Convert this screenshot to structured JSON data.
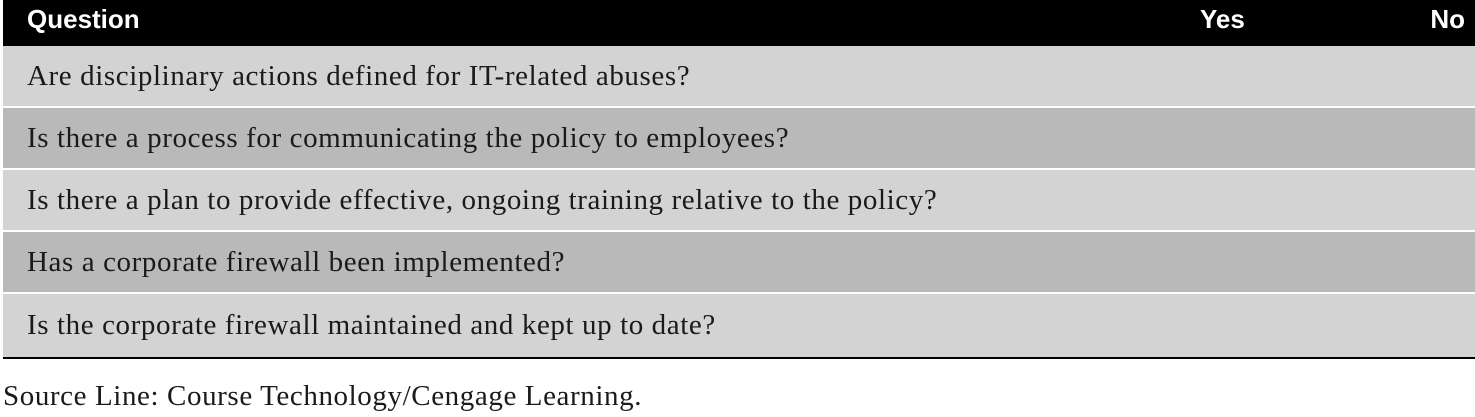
{
  "header": {
    "question": "Question",
    "yes": "Yes",
    "no": "No"
  },
  "rows": [
    "Are disciplinary actions defined for IT-related abuses?",
    "Is there a process for communicating the policy to employees?",
    "Is there a plan to provide effective, ongoing training relative to the policy?",
    "Has a corporate firewall been implemented?",
    "Is the corporate firewall maintained and kept up to date?"
  ],
  "source_line": "Source Line: Course Technology/Cengage Learning.",
  "colors": {
    "header_bg": "#000000",
    "row_light": "#d3d3d3",
    "row_dark": "#b9b9b9"
  }
}
